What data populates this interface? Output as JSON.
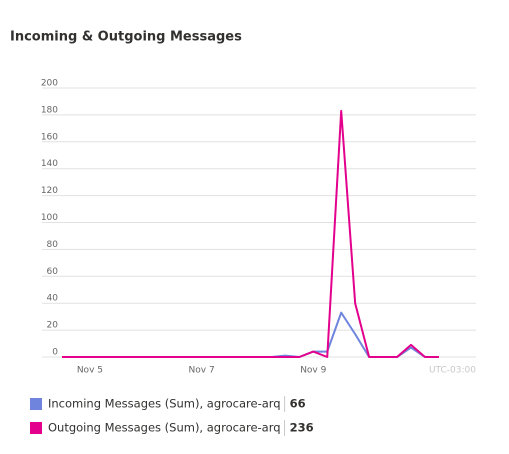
{
  "chart_data": {
    "type": "line",
    "title": "Incoming & Outgoing Messages",
    "categories": [
      null,
      null,
      "Nov 5",
      null,
      null,
      null,
      null,
      null,
      null,
      null,
      "Nov 7",
      null,
      null,
      null,
      null,
      null,
      null,
      null,
      "Nov 9",
      null,
      null,
      null,
      null,
      null,
      null,
      null,
      null,
      null
    ],
    "timezone": "UTC-03:00",
    "ylim": [
      0,
      200
    ],
    "yticks": [
      0,
      20,
      40,
      60,
      80,
      100,
      120,
      140,
      160,
      180,
      200
    ],
    "grid": true,
    "series": [
      {
        "name": "Incoming Messages (Sum), agrocare-arq",
        "color": "#6f84dc",
        "total": 66,
        "values": [
          0,
          0,
          0,
          0,
          0,
          0,
          0,
          0,
          0,
          0,
          0,
          0,
          0,
          0,
          0,
          0,
          1,
          0,
          4,
          4,
          33,
          17,
          0,
          0,
          0,
          7,
          0,
          0
        ]
      },
      {
        "name": "Outgoing Messages (Sum), agrocare-arq",
        "color": "#e3008c",
        "total": 236,
        "values": [
          0,
          0,
          0,
          0,
          0,
          0,
          0,
          0,
          0,
          0,
          0,
          0,
          0,
          0,
          0,
          0,
          0,
          0,
          4,
          0,
          183,
          40,
          0,
          0,
          0,
          9,
          0,
          0
        ]
      }
    ]
  }
}
